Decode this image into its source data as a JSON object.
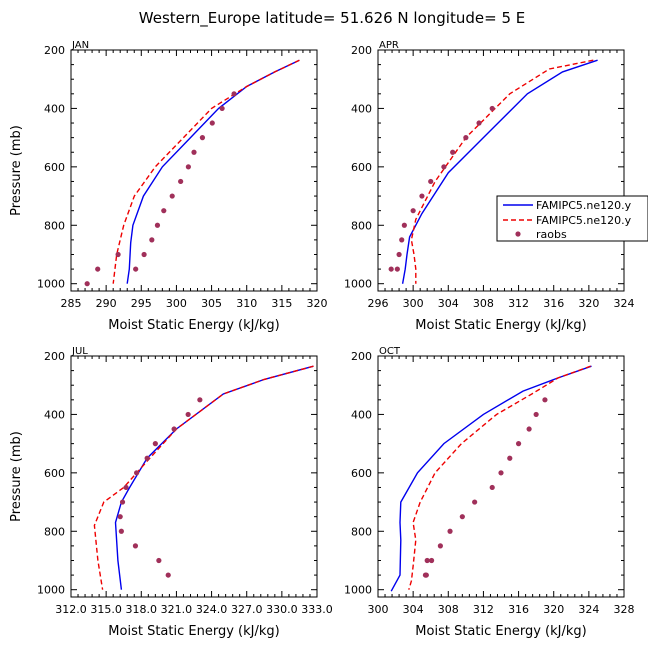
{
  "figure_title": "Western_Europe  latitude= 51.626 N longitude= 5 E",
  "legend": {
    "entries": [
      "FAMIPC5.ne120.y",
      "FAMIPC5.ne120.y",
      "raobs"
    ]
  },
  "colors": {
    "model1": "#0000ee",
    "model2": "#ee0000",
    "obs": "#a0305a"
  },
  "chart_data": [
    {
      "type": "line",
      "panel_label": "JAN",
      "xlabel": "Moist Static Energy (kJ/kg)",
      "ylabel": "Pressure (mb)",
      "xlim": [
        285,
        320
      ],
      "ylim": [
        1025,
        200
      ],
      "xticks": [
        "285",
        "290",
        "295",
        "300",
        "305",
        "310",
        "315",
        "320"
      ],
      "yticks": [
        "200",
        "400",
        "600",
        "800",
        "1000"
      ],
      "series": [
        {
          "name": "FAMIPC5.ne120.y",
          "style": "solid-blue",
          "x": [
            317.5,
            314,
            310,
            306,
            302,
            298,
            295.3,
            293.8,
            293.5,
            293.3,
            293.0
          ],
          "y": [
            235,
            275,
            325,
            400,
            500,
            600,
            700,
            800,
            860,
            950,
            1000
          ]
        },
        {
          "name": "FAMIPC5.ne120.y",
          "style": "dashed-red",
          "x": [
            317.5,
            314,
            310,
            305,
            301,
            297,
            294,
            292.5,
            291.5,
            291.0
          ],
          "y": [
            235,
            275,
            325,
            400,
            500,
            600,
            700,
            800,
            900,
            1000
          ]
        },
        {
          "name": "raobs",
          "style": "dots",
          "x": [
            308.2,
            306.5,
            305.1,
            303.7,
            302.5,
            301.7,
            300.6,
            299.4,
            298.2,
            297.3,
            296.5,
            295.4,
            294.2,
            291.7,
            288.8,
            287.3
          ],
          "y": [
            350,
            400,
            450,
            500,
            550,
            600,
            650,
            700,
            750,
            800,
            850,
            900,
            950,
            900,
            950,
            1000
          ]
        }
      ]
    },
    {
      "type": "line",
      "panel_label": "APR",
      "xlabel": "Moist Static Energy (kJ/kg)",
      "ylabel": "",
      "xlim": [
        296,
        324
      ],
      "ylim": [
        1025,
        200
      ],
      "xticks": [
        "296",
        "300",
        "304",
        "308",
        "312",
        "316",
        "320",
        "324"
      ],
      "yticks": [
        "200",
        "400",
        "600",
        "800",
        "1000"
      ],
      "series": [
        {
          "name": "FAMIPC5.ne120.y",
          "style": "solid-blue",
          "x": [
            321,
            317,
            313,
            308,
            304,
            301,
            299.6,
            299.3,
            299.1,
            298.8
          ],
          "y": [
            235,
            275,
            350,
            500,
            620,
            760,
            840,
            900,
            950,
            1000
          ]
        },
        {
          "name": "FAMIPC5.ne120.y",
          "style": "dashed-red",
          "x": [
            320.5,
            315.5,
            311,
            306,
            302.5,
            300.3,
            299.8,
            300.1,
            300.3,
            300.3
          ],
          "y": [
            235,
            265,
            350,
            500,
            650,
            780,
            850,
            900,
            950,
            1000
          ]
        },
        {
          "name": "raobs",
          "style": "dots",
          "x": [
            309,
            307.5,
            306,
            304.5,
            303.5,
            302,
            301,
            300,
            299,
            298.7,
            298.4,
            298.2,
            297.5
          ],
          "y": [
            400,
            450,
            500,
            550,
            600,
            650,
            700,
            750,
            800,
            850,
            900,
            950,
            950
          ]
        }
      ]
    },
    {
      "type": "line",
      "panel_label": "JUL",
      "xlabel": "Moist Static Energy (kJ/kg)",
      "ylabel": "Pressure (mb)",
      "xlim": [
        312,
        333
      ],
      "ylim": [
        1025,
        200
      ],
      "xticks": [
        "312.0",
        "315.0",
        "318.0",
        "321.0",
        "324.0",
        "327.0",
        "330.0",
        "333.0"
      ],
      "yticks": [
        "200",
        "400",
        "600",
        "800",
        "1000"
      ],
      "series": [
        {
          "name": "FAMIPC5.ne120.y",
          "style": "solid-blue",
          "x": [
            332.7,
            328.5,
            325,
            321,
            318.5,
            317,
            316.3,
            315.8,
            316.0,
            316.3
          ],
          "y": [
            235,
            280,
            330,
            450,
            550,
            650,
            700,
            770,
            900,
            1000
          ]
        },
        {
          "name": "FAMIPC5.ne120.y",
          "style": "dashed-red",
          "x": [
            332.7,
            328.5,
            325,
            321,
            318.5,
            316.5,
            314.8,
            314.0,
            314.3,
            314.7
          ],
          "y": [
            235,
            280,
            330,
            450,
            560,
            650,
            700,
            780,
            900,
            1000
          ]
        },
        {
          "name": "raobs",
          "style": "dots",
          "x": [
            323,
            322,
            320.8,
            319.2,
            318.5,
            317.6,
            316.7,
            316.4,
            316.2,
            316.3,
            317.5,
            319.5,
            320.3
          ],
          "y": [
            350,
            400,
            450,
            500,
            550,
            600,
            650,
            700,
            750,
            800,
            850,
            900,
            950
          ]
        }
      ]
    },
    {
      "type": "line",
      "panel_label": "OCT",
      "xlabel": "Moist Static Energy (kJ/kg)",
      "ylabel": "",
      "xlim": [
        300,
        328
      ],
      "ylim": [
        1025,
        200
      ],
      "xticks": [
        "300",
        "304",
        "308",
        "312",
        "316",
        "320",
        "324",
        "328"
      ],
      "yticks": [
        "200",
        "400",
        "600",
        "800",
        "1000"
      ],
      "series": [
        {
          "name": "FAMIPC5.ne120.y",
          "style": "solid-blue",
          "x": [
            324.3,
            320.5,
            316.5,
            312,
            307.5,
            304.5,
            302.6,
            302.5,
            302.6,
            302.5,
            301.5
          ],
          "y": [
            235,
            275,
            320,
            400,
            500,
            600,
            700,
            770,
            830,
            950,
            1005
          ]
        },
        {
          "name": "FAMIPC5.ne120.y",
          "style": "dashed-red",
          "x": [
            324.2,
            320.5,
            317.5,
            313.5,
            309.5,
            306.5,
            304.8,
            304,
            304.3,
            304.0,
            303.8,
            303.5
          ],
          "y": [
            235,
            275,
            330,
            400,
            500,
            600,
            700,
            770,
            830,
            920,
            970,
            1000
          ]
        },
        {
          "name": "raobs",
          "style": "dots",
          "x": [
            319,
            318,
            317.2,
            316,
            315,
            314,
            313,
            311,
            309.6,
            308.2,
            307.1,
            306.1,
            305.4,
            305.6,
            305.5
          ],
          "y": [
            350,
            400,
            450,
            500,
            550,
            600,
            650,
            700,
            750,
            800,
            850,
            900,
            950,
            900,
            950
          ]
        }
      ]
    }
  ]
}
